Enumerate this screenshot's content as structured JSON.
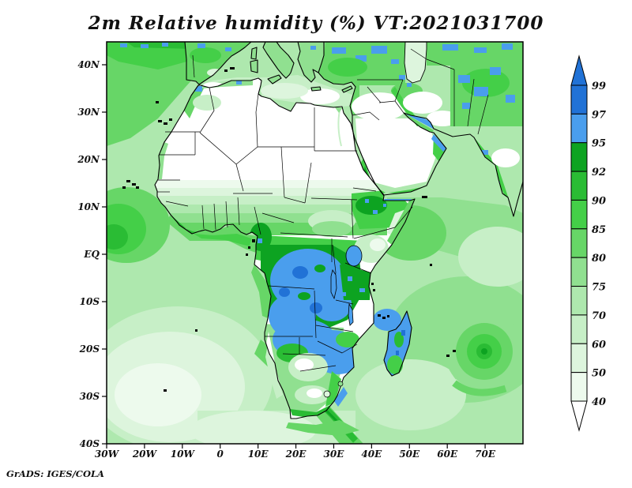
{
  "header": {
    "title": "2m Relative humidity (%) VT:2021031700"
  },
  "footer": {
    "credit": "GrADS: IGES/COLA"
  },
  "chart_data": {
    "type": "heatmap",
    "title": "2m Relative humidity (%) VT:2021031700",
    "variable": "2m Relative humidity",
    "units": "%",
    "valid_time_label": "VT:2021031700",
    "projection": "lat-lon map of Africa and surroundings",
    "x_axis": {
      "ticks": [
        "30W",
        "20W",
        "10W",
        "0",
        "10E",
        "20E",
        "30E",
        "40E",
        "50E",
        "60E",
        "70E"
      ],
      "range_deg_lon": [
        -30,
        80
      ]
    },
    "y_axis": {
      "ticks": [
        "40N",
        "30N",
        "20N",
        "10N",
        "EQ",
        "10S",
        "20S",
        "30S",
        "40S"
      ],
      "range_deg_lat": [
        -40,
        45
      ]
    },
    "colorbar": {
      "levels_top_to_bottom": [
        99,
        97,
        95,
        92,
        90,
        85,
        80,
        75,
        70,
        60,
        50,
        40
      ],
      "segment_colors_top_to_bottom": [
        "#2172d6",
        "#4a9eed",
        "#0da321",
        "#2abc34",
        "#44cf48",
        "#67d667",
        "#90e090",
        "#aee8ae",
        "#c7efc7",
        "#ddf5dd",
        "#edfaed"
      ],
      "over_arrow_color": "#2172d6",
      "under_arrow_color": "#ffffff",
      "outline_color": "#000000"
    },
    "grid": false,
    "legend_position": "right",
    "field_summary": [
      "Sahara, Egypt, Sudan and interior Arabian peninsula below 40% (white)",
      "Congo basin, Angola, Zambia, Zimbabwe and Mozambique coast 95-99% (blue)",
      "Madagascar mostly 95-97% with green patches",
      "Tropical Atlantic and Gulf of Guinea 75-90% (greens)",
      "South Atlantic subtropical high area 40-60% (pale green)",
      "Tropical cyclone swirl east of Madagascar near 70E 20S (85-92% rings)",
      "Sahel shows sharp north-south gradient from <40% to ~90%",
      "Iberia, Turkey, Iran highlands and NW India green with 95%+ patches"
    ]
  },
  "frame_color": "#000000"
}
